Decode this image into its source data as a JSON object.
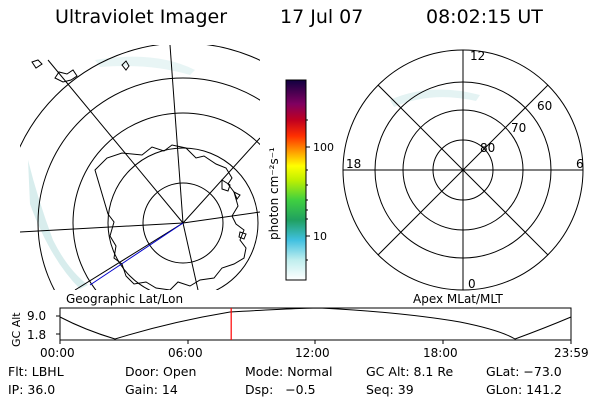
{
  "header": {
    "instrument": "Ultraviolet Imager",
    "date": "17 Jul 07",
    "time": "08:02:15 UT"
  },
  "colorbar": {
    "unit_label": "photon cm⁻²s⁻¹",
    "tick_100": "100",
    "tick_10": "10"
  },
  "left_map": {
    "label": "Geographic Lat/Lon"
  },
  "right_map": {
    "label": "Apex MLat/MLT",
    "mlt_top": "12",
    "mlt_left": "18",
    "mlt_right": "6",
    "mlt_bottom": "0",
    "lat_60": "60",
    "lat_70": "70",
    "lat_80": "80"
  },
  "timeline": {
    "ylabel": "GC Alt",
    "y_top": "9.0",
    "y_bottom": "1.8",
    "ticks": [
      "00:00",
      "06:00",
      "12:00",
      "18:00",
      "23:59"
    ],
    "current_time_fraction": 0.335
  },
  "footer": {
    "row1": {
      "flt": "Flt: LBHL",
      "door": "Door: Open",
      "mode": "Mode: Normal",
      "gc_alt": "GC Alt: 8.1 Re",
      "glat": "GLat: −73.0"
    },
    "row2": {
      "ip": "IP: 36.0",
      "gain": "Gain: 14",
      "dsp": "Dsp:   −0.5",
      "seq": "Seq: 39",
      "glon": "GLon: 141.2"
    }
  },
  "colors": {
    "marker": "#ff0000",
    "track": "#0000cc",
    "aurora": "#c8e6e6"
  }
}
